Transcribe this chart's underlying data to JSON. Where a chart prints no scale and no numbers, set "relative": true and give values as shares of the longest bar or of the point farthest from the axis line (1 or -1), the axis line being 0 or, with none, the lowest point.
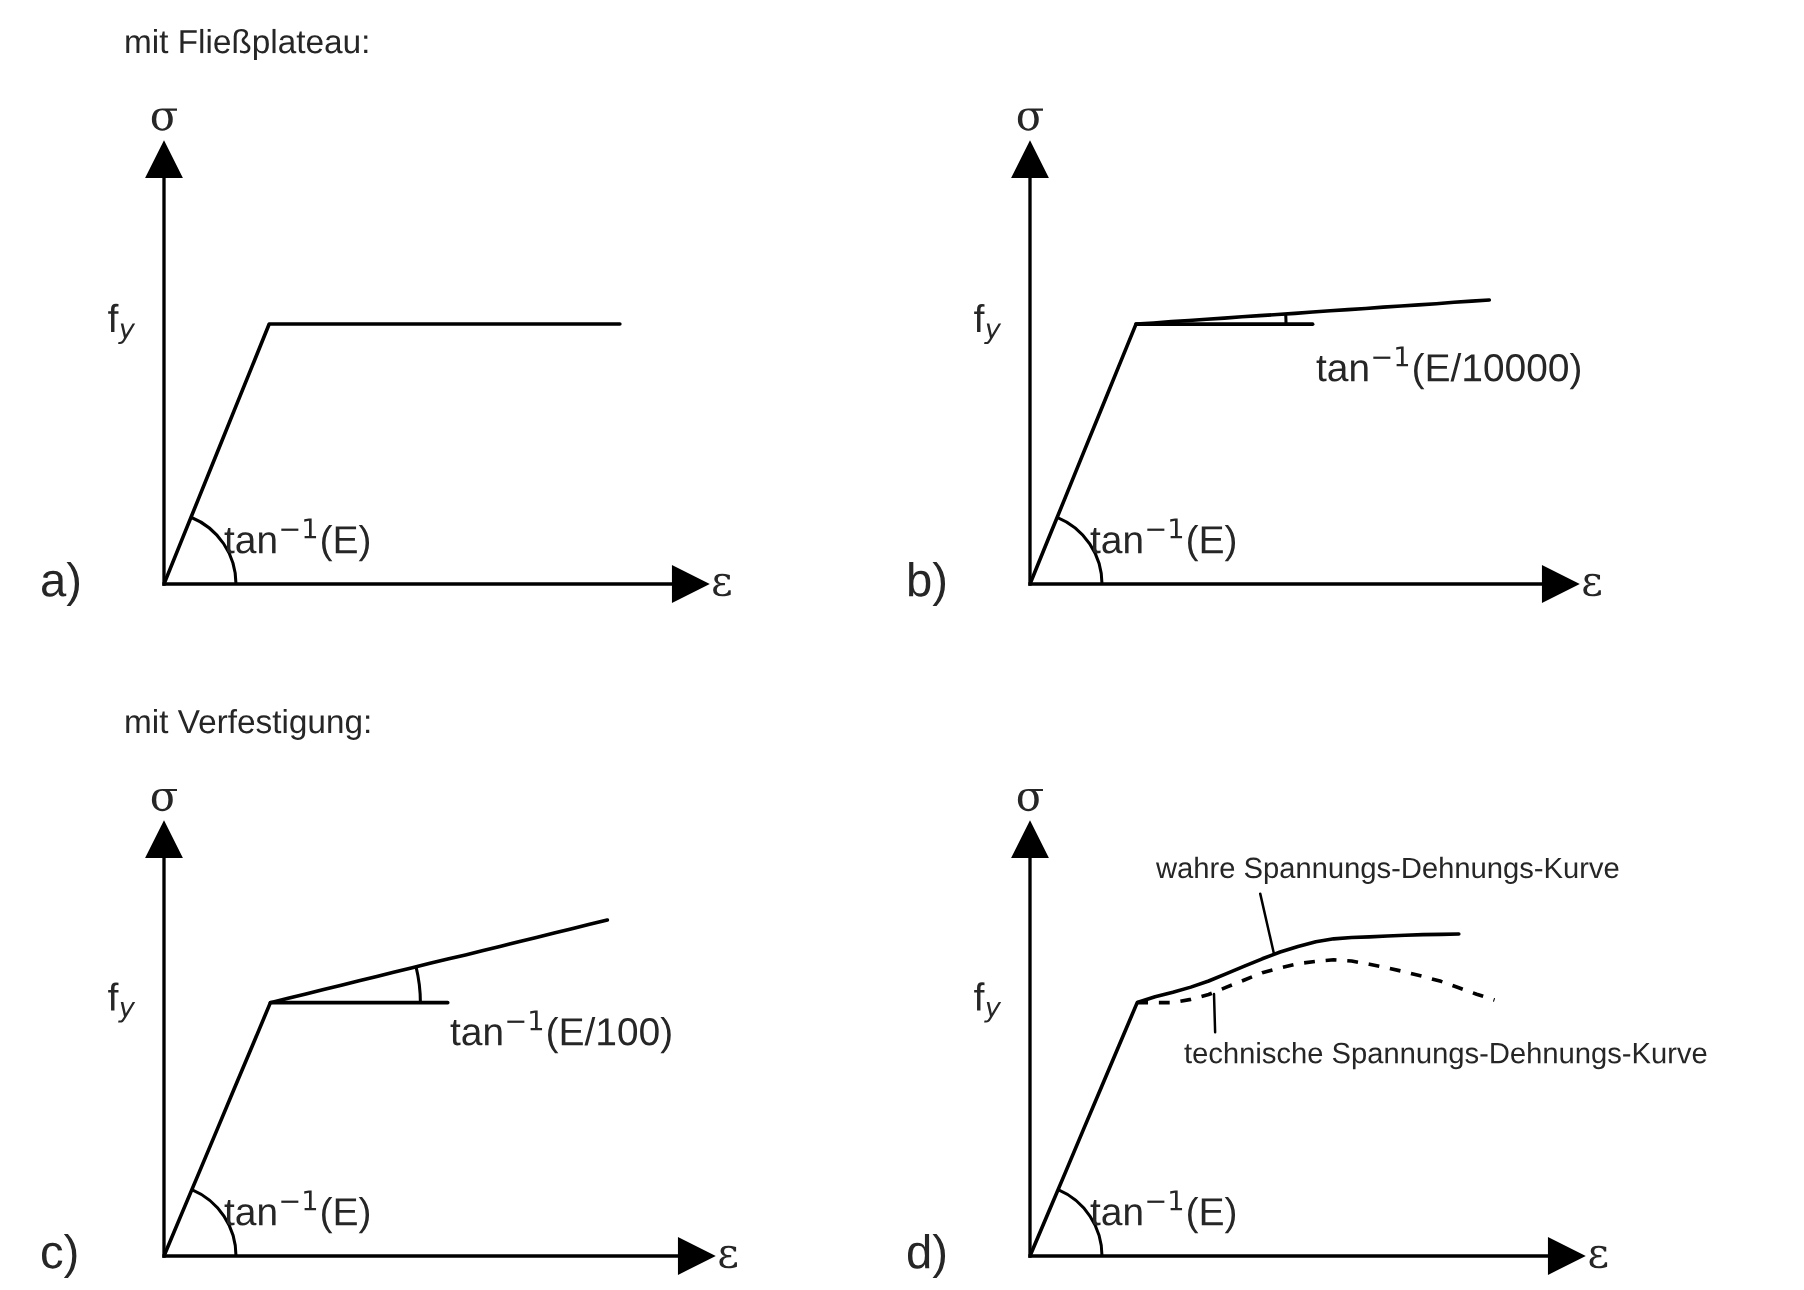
{
  "chart_data": [
    {
      "type": "line",
      "relative": true,
      "title": "mit Fließplateau:",
      "xlabel": "ε",
      "ylabel": "σ",
      "grid": false,
      "categories": [
        null,
        null,
        null,
        null,
        null,
        null,
        null,
        null,
        null,
        null,
        null,
        null,
        null,
        null,
        null,
        null,
        null,
        null,
        null,
        null,
        null,
        null,
        null,
        null,
        null,
        null,
        null,
        null,
        null,
        null
      ],
      "series": [
        {
          "color": "#000000",
          "values": [
            0,
            0.167,
            0.333,
            0.5,
            0.667,
            0.833,
            1,
            1,
            1,
            1,
            1,
            1,
            1,
            1,
            1,
            1,
            1,
            1,
            1,
            1,
            1,
            1,
            1,
            1,
            1,
            1,
            1,
            null,
            null,
            null
          ]
        }
      ],
      "annotations": [
        "a)",
        "f$_{y}$",
        "tan$^{−1}$(E)"
      ]
    },
    {
      "type": "line",
      "relative": true,
      "xlabel": "ε",
      "ylabel": "σ",
      "grid": false,
      "categories": [
        null,
        null,
        null,
        null,
        null,
        null,
        null,
        null,
        null,
        null,
        null,
        null,
        null,
        null,
        null,
        null,
        null,
        null,
        null,
        null,
        null,
        null,
        null,
        null,
        null,
        null,
        null,
        null,
        null,
        null
      ],
      "series": [
        {
          "color": "#000000",
          "values": [
            0,
            0.153,
            0.305,
            0.458,
            0.61,
            0.763,
            0.915,
            0.919,
            0.924,
            0.928,
            0.932,
            0.936,
            0.941,
            0.945,
            0.949,
            0.953,
            0.958,
            0.962,
            0.966,
            0.97,
            0.975,
            0.979,
            0.983,
            0.987,
            0.992,
            0.996,
            1,
            null,
            null,
            null
          ]
        },
        {
          "color": "#000000",
          "values": [
            null,
            null,
            null,
            null,
            null,
            null,
            0.915,
            0.915,
            0.915,
            0.915,
            0.915,
            0.915,
            0.915,
            0.915,
            0.915,
            0.915,
            0.915,
            null,
            null,
            null,
            null,
            null,
            null,
            null,
            null,
            null,
            null,
            null,
            null,
            null
          ]
        }
      ],
      "annotations": [
        "b)",
        "f$_{y}$",
        "tan$^{−1}$(E)",
        "tan$^{−1}$(E/10000)"
      ]
    },
    {
      "type": "line",
      "relative": true,
      "title": "mit Verfestigung:",
      "xlabel": "ε",
      "ylabel": "σ",
      "grid": false,
      "categories": [
        null,
        null,
        null,
        null,
        null,
        null,
        null,
        null,
        null,
        null,
        null,
        null,
        null,
        null,
        null,
        null,
        null,
        null,
        null,
        null,
        null,
        null,
        null,
        null,
        null,
        null,
        null,
        null,
        null,
        null
      ],
      "series": [
        {
          "color": "#000000",
          "values": [
            0,
            0.126,
            0.251,
            0.377,
            0.503,
            0.628,
            0.754,
            0.767,
            0.78,
            0.793,
            0.806,
            0.819,
            0.832,
            0.845,
            0.858,
            0.871,
            0.884,
            0.896,
            0.909,
            0.922,
            0.935,
            0.948,
            0.961,
            0.974,
            0.987,
            1,
            null,
            null,
            null,
            null
          ]
        },
        {
          "color": "#000000",
          "values": [
            null,
            null,
            null,
            null,
            null,
            null,
            0.754,
            0.754,
            0.754,
            0.754,
            0.754,
            0.754,
            0.754,
            0.754,
            0.754,
            0.754,
            0.754,
            null,
            null,
            null,
            null,
            null,
            null,
            null,
            null,
            null,
            null,
            null,
            null,
            null
          ]
        }
      ],
      "annotations": [
        "c)",
        "f$_{y}$",
        "tan$^{−1}$(E)",
        "tan$^{−1}$(E/100)"
      ]
    },
    {
      "type": "line",
      "relative": true,
      "xlabel": "ε",
      "ylabel": "σ",
      "grid": false,
      "categories": [
        null,
        null,
        null,
        null,
        null,
        null,
        null,
        null,
        null,
        null,
        null,
        null,
        null,
        null,
        null,
        null,
        null,
        null,
        null,
        null,
        null,
        null,
        null,
        null,
        null,
        null,
        null,
        null,
        null,
        null
      ],
      "series": [
        {
          "color": "#000000",
          "values": [
            0,
            0.131,
            0.262,
            0.394,
            0.525,
            0.656,
            0.787,
            0.805,
            0.819,
            0.835,
            0.854,
            0.877,
            0.9,
            0.923,
            0.944,
            0.961,
            0.976,
            0.985,
            0.989,
            0.991,
            0.994,
            0.996,
            0.998,
            0.999,
            1,
            null,
            null,
            null,
            null,
            null
          ]
        },
        {
          "color": "#000000",
          "line_style": "dashed",
          "values": [
            null,
            null,
            null,
            null,
            null,
            null,
            0.787,
            0.787,
            0.787,
            0.797,
            0.812,
            0.835,
            0.857,
            0.88,
            0.895,
            0.908,
            0.915,
            0.92,
            0.916,
            0.906,
            0.895,
            0.882,
            0.868,
            0.853,
            0.833,
            0.813,
            0.795,
            null,
            null,
            null
          ]
        }
      ],
      "annotations": [
        "d)",
        "f$_{y}$",
        "tan$^{−1}$(E)",
        "wahre Spannungs-Dehnungs-Kurve",
        "technische Spannungs-Dehnungs-Kurve"
      ]
    }
  ]
}
